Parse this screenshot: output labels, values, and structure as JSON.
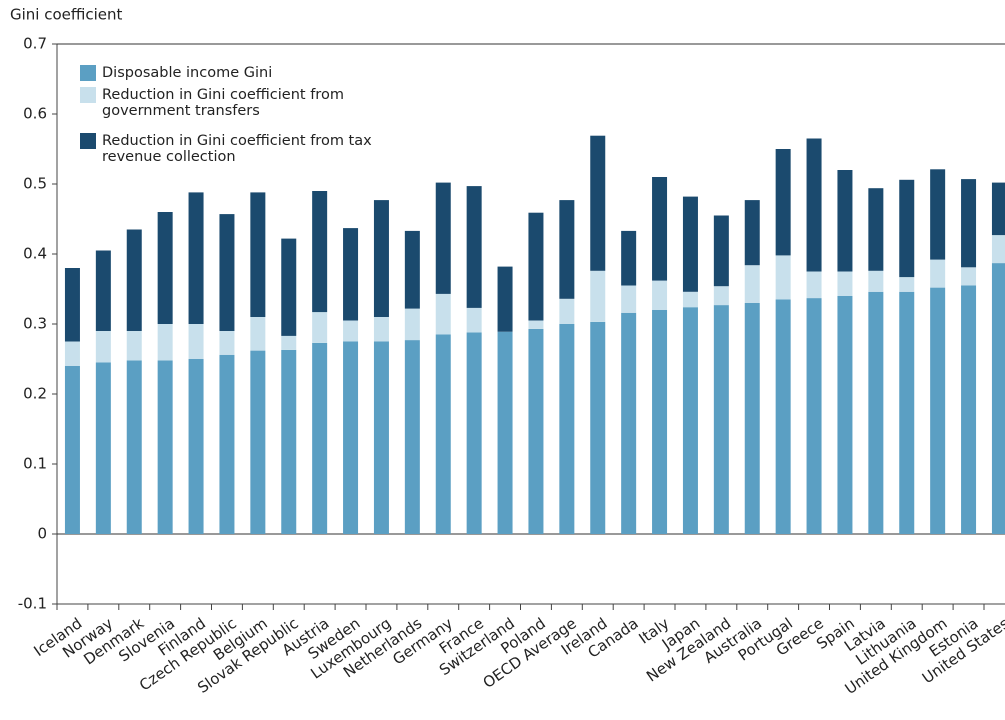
{
  "chart_data": {
    "type": "stacked_bar",
    "y_axis_label": "Gini coefficient",
    "categories": [
      "Iceland",
      "Norway",
      "Denmark",
      "Slovenia",
      "Finland",
      "Czech Republic",
      "Belgium",
      "Slovak Republic",
      "Austria",
      "Sweden",
      "Luxembourg",
      "Netherlands",
      "Germany",
      "France",
      "Switzerland",
      "Poland",
      "OECD Average",
      "Ireland",
      "Canada",
      "Italy",
      "Japan",
      "New Zealand",
      "Australia",
      "Portugal",
      "Greece",
      "Spain",
      "Latvia",
      "Lithuania",
      "United Kingdom",
      "Estonia",
      "United States"
    ],
    "series": [
      {
        "name": "Disposable income Gini",
        "color": "#5b9fc3",
        "values": [
          0.24,
          0.245,
          0.248,
          0.248,
          0.25,
          0.256,
          0.262,
          0.263,
          0.273,
          0.275,
          0.275,
          0.277,
          0.285,
          0.288,
          0.289,
          0.293,
          0.3,
          0.303,
          0.316,
          0.32,
          0.324,
          0.327,
          0.33,
          0.335,
          0.337,
          0.34,
          0.346,
          0.346,
          0.352,
          0.355,
          0.387
        ]
      },
      {
        "name": "Reduction in Gini coefficient from government transfers",
        "color": "#c8e0ec",
        "values": [
          0.035,
          0.045,
          0.042,
          0.052,
          0.05,
          0.034,
          0.048,
          0.02,
          0.044,
          0.03,
          0.035,
          0.045,
          0.058,
          0.035,
          0,
          0.012,
          0.036,
          0.073,
          0.039,
          0.042,
          0.022,
          0.027,
          0.054,
          0.063,
          0.038,
          0.035,
          0.03,
          0.021,
          0.04,
          0.026,
          0.04
        ]
      },
      {
        "name": "Reduction in Gini coefficient from tax revenue collection",
        "color": "#1b4a6e",
        "values": [
          0.105,
          0.115,
          0.145,
          0.16,
          0.188,
          0.167,
          0.178,
          0.139,
          0.173,
          0.132,
          0.167,
          0.111,
          0.159,
          0.174,
          0.093,
          0.154,
          0.141,
          0.193,
          0.078,
          0.148,
          0.136,
          0.101,
          0.093,
          0.152,
          0.19,
          0.145,
          0.118,
          0.139,
          0.129,
          0.126,
          0.075
        ]
      }
    ],
    "ylim": [
      -0.1,
      0.7
    ],
    "yticks": [
      0.7,
      0.6,
      0.5,
      0.4,
      0.3,
      0.2,
      0.1,
      0,
      -0.1
    ],
    "legend": "upper left"
  }
}
